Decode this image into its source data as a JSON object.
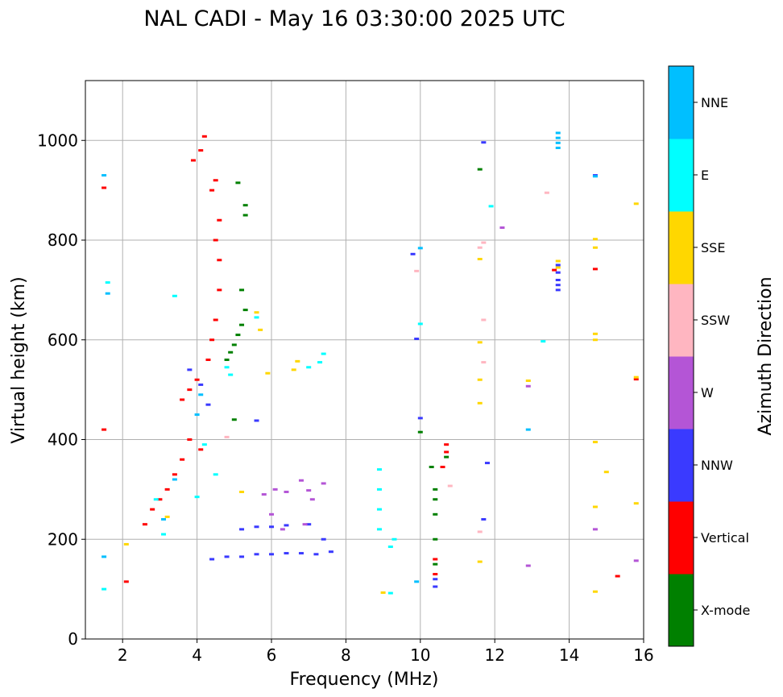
{
  "chart_data": {
    "type": "scatter",
    "title": "NAL CADI - May 16 03:30:00 2025 UTC",
    "xlabel": "Frequency (MHz)",
    "ylabel": "Virtual height (km)",
    "xlim": [
      1,
      16
    ],
    "ylim": [
      0,
      1120
    ],
    "xticks": [
      2,
      4,
      6,
      8,
      10,
      12,
      14,
      16
    ],
    "yticks": [
      0,
      200,
      400,
      600,
      800,
      1000
    ],
    "grid": true,
    "colorbar": {
      "label": "Azimuth Direction",
      "categories": [
        {
          "name": "X-mode",
          "color": "#008000"
        },
        {
          "name": "Vertical",
          "color": "#ff0000"
        },
        {
          "name": "NNW",
          "color": "#3a3aff"
        },
        {
          "name": "W",
          "color": "#b455d6"
        },
        {
          "name": "SSW",
          "color": "#ffb6c1"
        },
        {
          "name": "SSE",
          "color": "#ffd700"
        },
        {
          "name": "E",
          "color": "#00ffff"
        },
        {
          "name": "NNE",
          "color": "#00bfff"
        }
      ]
    },
    "series": [
      {
        "name": "Vertical",
        "points": [
          [
            1.5,
            420
          ],
          [
            1.5,
            905
          ],
          [
            2.1,
            115
          ],
          [
            2.6,
            230
          ],
          [
            2.8,
            260
          ],
          [
            3.0,
            280
          ],
          [
            3.2,
            300
          ],
          [
            3.4,
            330
          ],
          [
            3.6,
            360
          ],
          [
            3.8,
            400
          ],
          [
            3.6,
            480
          ],
          [
            3.8,
            500
          ],
          [
            4.0,
            520
          ],
          [
            4.1,
            380
          ],
          [
            4.3,
            560
          ],
          [
            4.4,
            600
          ],
          [
            4.5,
            640
          ],
          [
            4.6,
            700
          ],
          [
            4.6,
            760
          ],
          [
            4.5,
            800
          ],
          [
            4.2,
            1008
          ],
          [
            4.1,
            980
          ],
          [
            3.9,
            960
          ],
          [
            4.5,
            920
          ],
          [
            4.4,
            900
          ],
          [
            4.6,
            840
          ],
          [
            10.4,
            130
          ],
          [
            10.4,
            160
          ],
          [
            10.6,
            345
          ],
          [
            10.7,
            375
          ],
          [
            10.7,
            390
          ],
          [
            13.6,
            740
          ],
          [
            14.7,
            742
          ],
          [
            15.3,
            126
          ],
          [
            15.8,
            521
          ]
        ]
      },
      {
        "name": "X-mode",
        "points": [
          [
            4.8,
            560
          ],
          [
            4.9,
            575
          ],
          [
            5.0,
            590
          ],
          [
            5.1,
            610
          ],
          [
            5.2,
            630
          ],
          [
            5.3,
            660
          ],
          [
            5.2,
            700
          ],
          [
            5.1,
            915
          ],
          [
            5.3,
            850
          ],
          [
            5.3,
            870
          ],
          [
            5.0,
            440
          ],
          [
            10.0,
            415
          ],
          [
            10.3,
            345
          ],
          [
            10.4,
            300
          ],
          [
            10.4,
            280
          ],
          [
            10.4,
            250
          ],
          [
            10.4,
            200
          ],
          [
            10.4,
            150
          ],
          [
            10.7,
            365
          ],
          [
            11.6,
            942
          ]
        ]
      },
      {
        "name": "NNW",
        "points": [
          [
            4.4,
            160
          ],
          [
            4.8,
            165
          ],
          [
            5.2,
            165
          ],
          [
            5.6,
            170
          ],
          [
            6.0,
            170
          ],
          [
            6.4,
            172
          ],
          [
            6.8,
            172
          ],
          [
            7.2,
            170
          ],
          [
            7.6,
            175
          ],
          [
            5.2,
            220
          ],
          [
            5.6,
            225
          ],
          [
            6.0,
            225
          ],
          [
            6.4,
            228
          ],
          [
            7.0,
            230
          ],
          [
            7.4,
            200
          ],
          [
            4.3,
            470
          ],
          [
            4.1,
            510
          ],
          [
            3.8,
            540
          ],
          [
            5.6,
            438
          ],
          [
            9.8,
            772
          ],
          [
            9.9,
            602
          ],
          [
            10.0,
            443
          ],
          [
            10.4,
            105
          ],
          [
            10.4,
            120
          ],
          [
            11.8,
            353
          ],
          [
            11.7,
            240
          ],
          [
            13.7,
            700
          ],
          [
            13.7,
            710
          ],
          [
            13.7,
            720
          ],
          [
            13.7,
            735
          ],
          [
            13.7,
            750
          ],
          [
            14.7,
            930
          ],
          [
            11.7,
            996
          ]
        ]
      },
      {
        "name": "W",
        "points": [
          [
            5.8,
            290
          ],
          [
            6.1,
            300
          ],
          [
            6.4,
            295
          ],
          [
            6.8,
            318
          ],
          [
            7.0,
            298
          ],
          [
            7.4,
            312
          ],
          [
            6.0,
            250
          ],
          [
            6.3,
            220
          ],
          [
            6.9,
            230
          ],
          [
            12.2,
            825
          ],
          [
            12.9,
            507
          ],
          [
            12.9,
            147
          ],
          [
            14.7,
            220
          ],
          [
            15.8,
            157
          ],
          [
            7.1,
            280
          ]
        ]
      },
      {
        "name": "SSW",
        "points": [
          [
            4.8,
            405
          ],
          [
            10.8,
            307
          ],
          [
            11.6,
            215
          ],
          [
            11.7,
            555
          ],
          [
            11.7,
            640
          ],
          [
            11.6,
            785
          ],
          [
            11.7,
            795
          ],
          [
            13.4,
            895
          ],
          [
            9.9,
            738
          ]
        ]
      },
      {
        "name": "SSE",
        "points": [
          [
            5.9,
            533
          ],
          [
            6.6,
            540
          ],
          [
            6.7,
            557
          ],
          [
            9.0,
            93
          ],
          [
            11.6,
            155
          ],
          [
            11.6,
            473
          ],
          [
            11.6,
            520
          ],
          [
            11.6,
            595
          ],
          [
            11.6,
            762
          ],
          [
            12.9,
            518
          ],
          [
            13.7,
            745
          ],
          [
            13.7,
            758
          ],
          [
            14.7,
            95
          ],
          [
            14.7,
            265
          ],
          [
            14.7,
            395
          ],
          [
            14.7,
            600
          ],
          [
            14.7,
            612
          ],
          [
            14.7,
            785
          ],
          [
            14.7,
            802
          ],
          [
            15.0,
            335
          ],
          [
            15.8,
            272
          ],
          [
            15.8,
            525
          ],
          [
            15.8,
            873
          ],
          [
            2.1,
            190
          ],
          [
            3.2,
            245
          ],
          [
            5.6,
            655
          ],
          [
            5.7,
            620
          ],
          [
            5.2,
            295
          ]
        ]
      },
      {
        "name": "E",
        "points": [
          [
            1.5,
            100
          ],
          [
            1.6,
            715
          ],
          [
            3.4,
            688
          ],
          [
            4.2,
            390
          ],
          [
            4.5,
            330
          ],
          [
            4.0,
            285
          ],
          [
            4.9,
            530
          ],
          [
            4.8,
            545
          ],
          [
            5.6,
            645
          ],
          [
            7.0,
            545
          ],
          [
            7.3,
            555
          ],
          [
            7.4,
            572
          ],
          [
            8.9,
            340
          ],
          [
            8.9,
            300
          ],
          [
            8.9,
            260
          ],
          [
            8.9,
            220
          ],
          [
            9.2,
            185
          ],
          [
            9.3,
            200
          ],
          [
            10.0,
            632
          ],
          [
            11.9,
            868
          ],
          [
            13.3,
            597
          ],
          [
            9.2,
            92
          ],
          [
            2.9,
            280
          ],
          [
            3.1,
            210
          ]
        ]
      },
      {
        "name": "NNE",
        "points": [
          [
            1.5,
            165
          ],
          [
            1.5,
            930
          ],
          [
            1.6,
            693
          ],
          [
            3.1,
            240
          ],
          [
            3.4,
            320
          ],
          [
            4.0,
            450
          ],
          [
            4.1,
            490
          ],
          [
            9.9,
            115
          ],
          [
            10.0,
            784
          ],
          [
            12.9,
            420
          ],
          [
            13.7,
            985
          ],
          [
            13.7,
            995
          ],
          [
            13.7,
            1005
          ],
          [
            13.7,
            1015
          ],
          [
            14.7,
            928
          ]
        ]
      }
    ]
  }
}
